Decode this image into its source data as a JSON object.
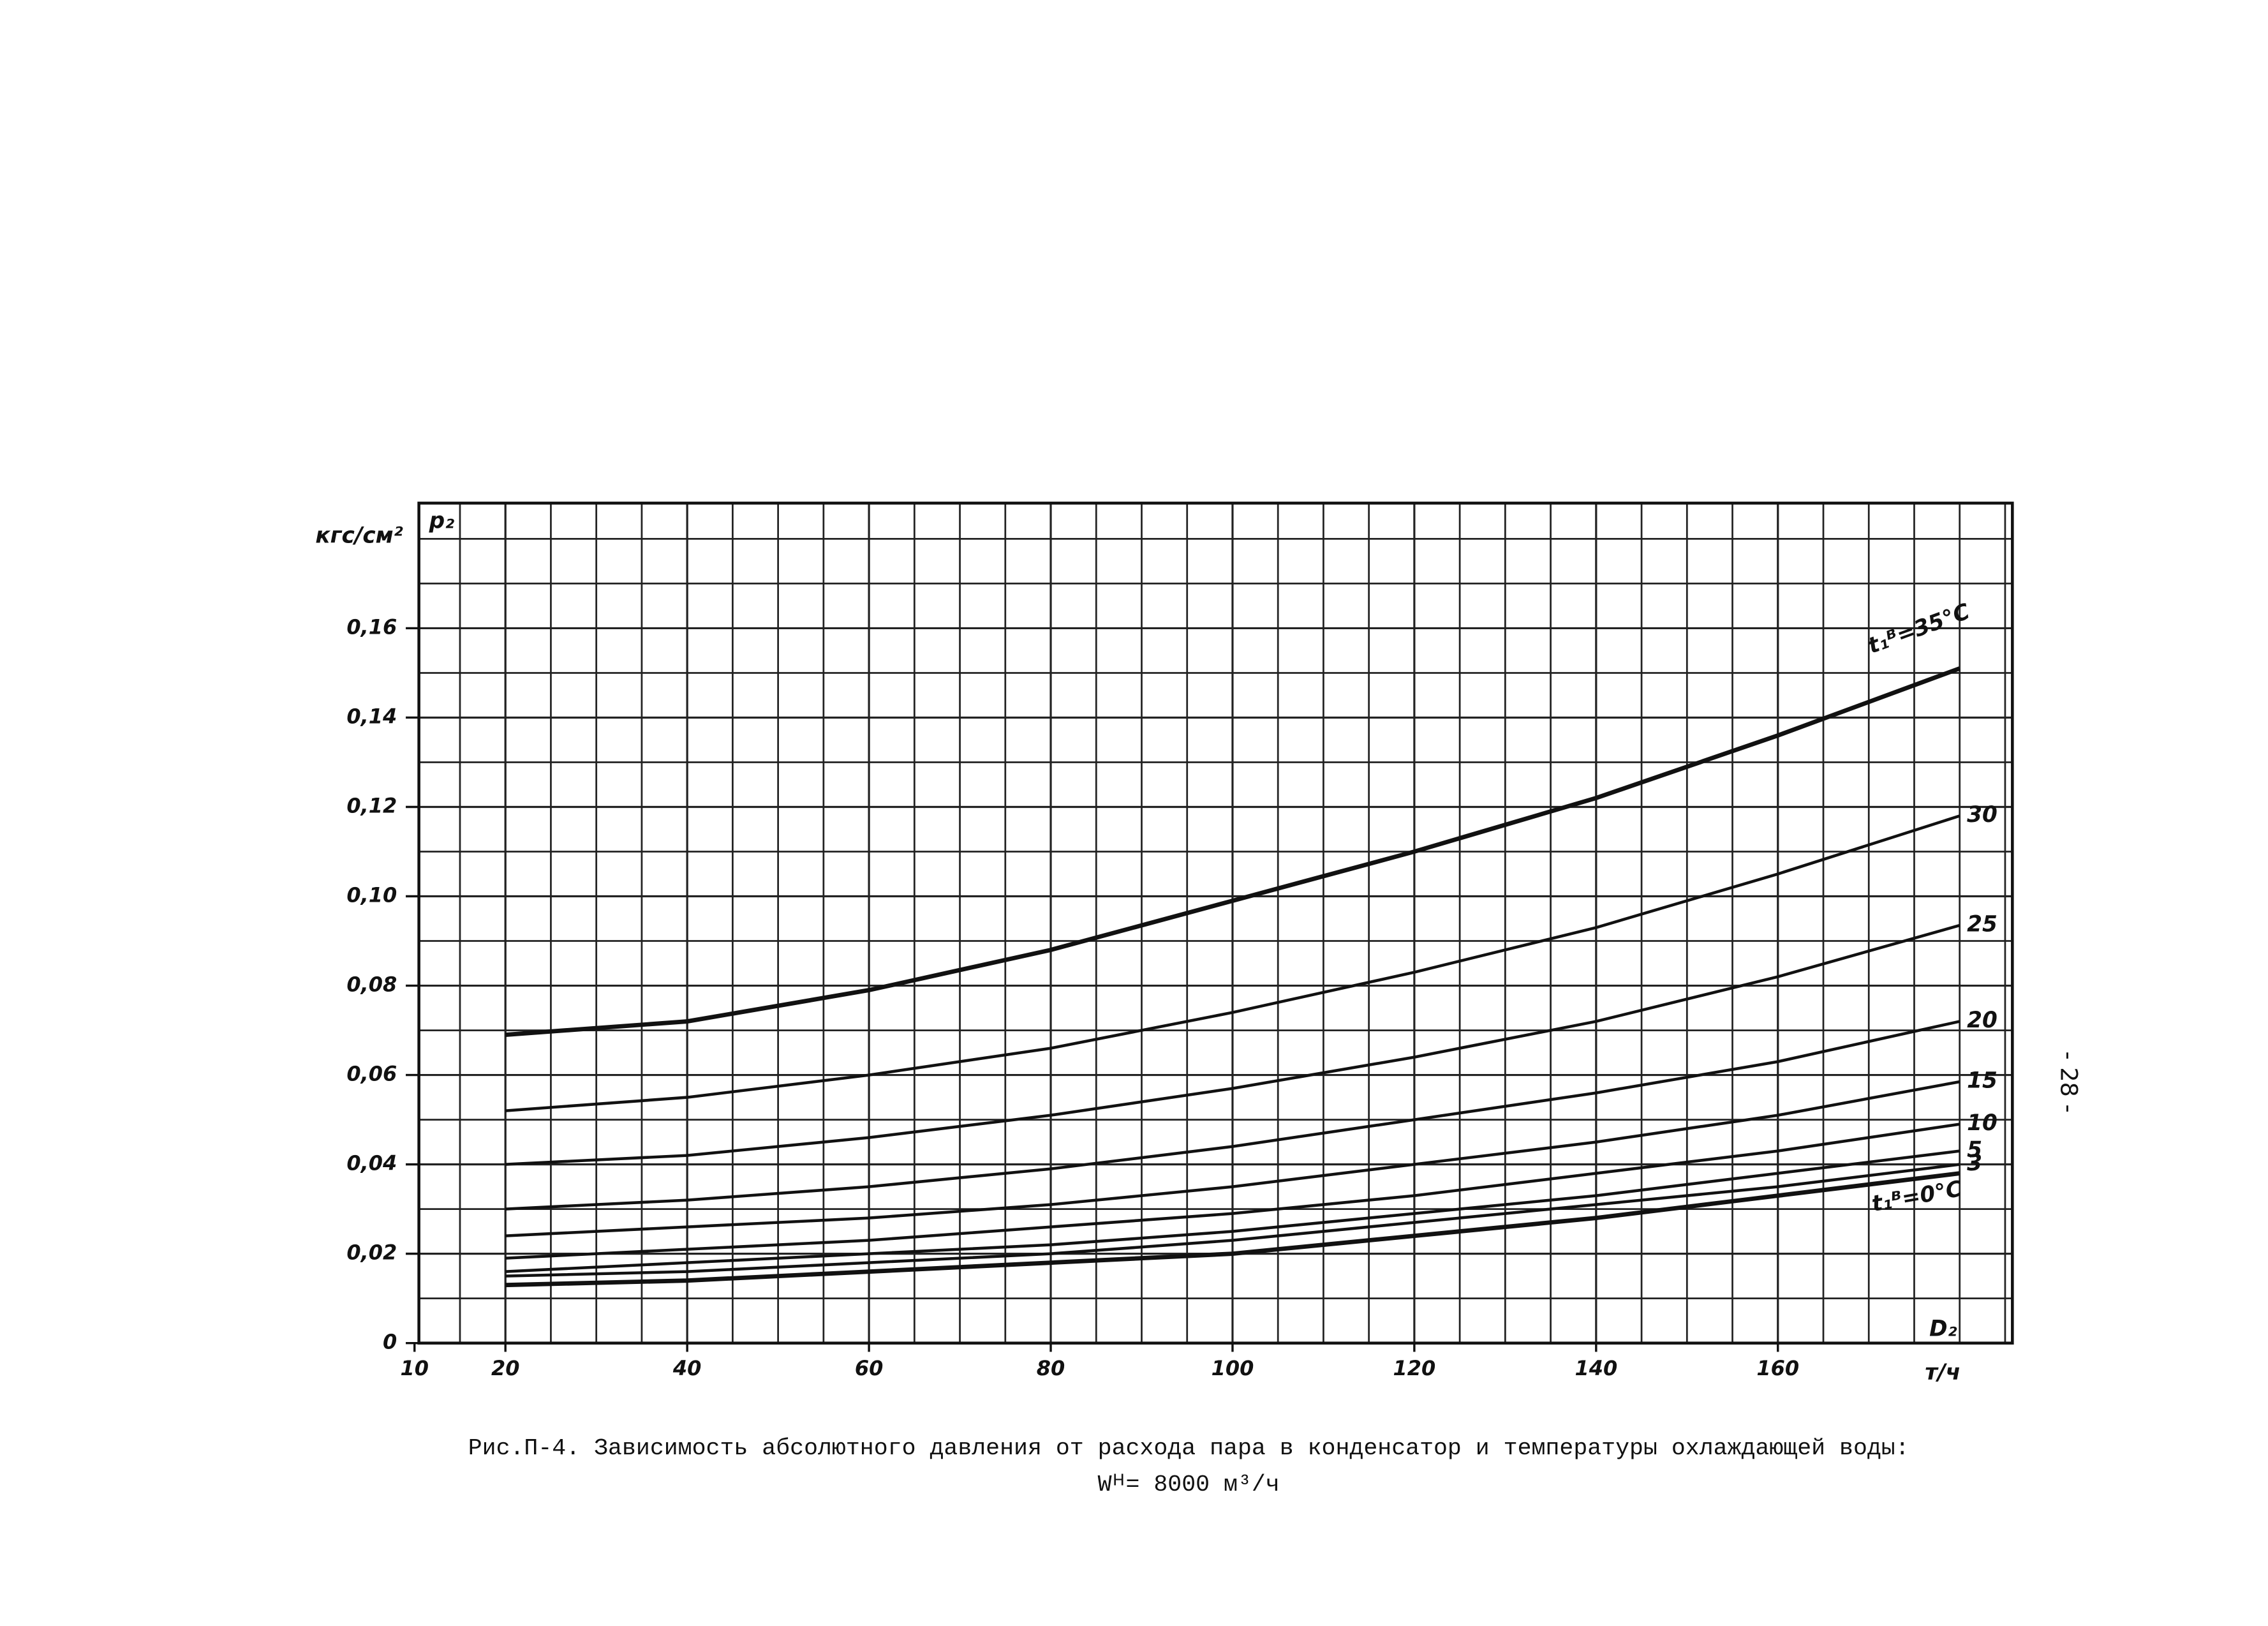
{
  "chart_data": {
    "type": "line",
    "y_label": "кгс/см²",
    "y_symbol": "p₂",
    "x_symbol": "D₂",
    "x_unit": "т/ч",
    "caption": "Рис.П-4. Зависимость абсолютного давления от расхода пара в конденсатор и температуры охлаждающей воды:",
    "caption_formula": "Wᴴ= 8000 м³/ч",
    "page_number": "- 28 -",
    "x": [
      20,
      40,
      60,
      80,
      100,
      120,
      140,
      160,
      180
    ],
    "xlim": [
      10,
      185.8
    ],
    "ylim": [
      0,
      0.188
    ],
    "xticks": [
      10,
      20,
      40,
      60,
      80,
      100,
      120,
      140,
      160
    ],
    "yticks": [
      0,
      {
        "value": 0.02,
        "label": "0,02"
      },
      {
        "value": 0.04,
        "label": "0,04"
      },
      {
        "value": 0.06,
        "label": "0,06"
      },
      {
        "value": 0.08,
        "label": "0,08"
      },
      {
        "value": 0.1,
        "label": "0,10"
      },
      {
        "value": 0.12,
        "label": "0,12"
      },
      {
        "value": 0.14,
        "label": "0,14"
      },
      {
        "value": 0.16,
        "label": "0,16"
      }
    ],
    "grid": true,
    "series": [
      {
        "name": "t₁ᴮ=35°C",
        "color": "#111111",
        "values": [
          0.069,
          0.072,
          0.079,
          0.088,
          0.099,
          0.11,
          0.122,
          0.136,
          0.151
        ]
      },
      {
        "name": "30",
        "color": "#111111",
        "values": [
          0.052,
          0.055,
          0.06,
          0.066,
          0.074,
          0.083,
          0.093,
          0.105,
          0.118
        ]
      },
      {
        "name": "25",
        "color": "#111111",
        "values": [
          0.04,
          0.042,
          0.046,
          0.051,
          0.057,
          0.064,
          0.072,
          0.082,
          0.0935
        ]
      },
      {
        "name": "20",
        "color": "#111111",
        "values": [
          0.03,
          0.032,
          0.035,
          0.039,
          0.044,
          0.05,
          0.056,
          0.063,
          0.072
        ]
      },
      {
        "name": "15",
        "color": "#111111",
        "values": [
          0.024,
          0.026,
          0.028,
          0.031,
          0.035,
          0.04,
          0.045,
          0.051,
          0.0585
        ]
      },
      {
        "name": "10",
        "color": "#111111",
        "values": [
          0.019,
          0.021,
          0.023,
          0.026,
          0.029,
          0.033,
          0.038,
          0.043,
          0.049
        ]
      },
      {
        "name": "5",
        "color": "#111111",
        "values": [
          0.016,
          0.018,
          0.02,
          0.022,
          0.025,
          0.029,
          0.033,
          0.038,
          0.043
        ]
      },
      {
        "name": "3",
        "color": "#111111",
        "values": [
          0.015,
          0.016,
          0.018,
          0.02,
          0.023,
          0.027,
          0.031,
          0.035,
          0.04
        ]
      },
      {
        "name": "t₁ᴮ=0°C",
        "color": "#111111",
        "values": [
          0.013,
          0.014,
          0.016,
          0.018,
          0.02,
          0.024,
          0.028,
          0.033,
          0.038
        ]
      }
    ]
  }
}
